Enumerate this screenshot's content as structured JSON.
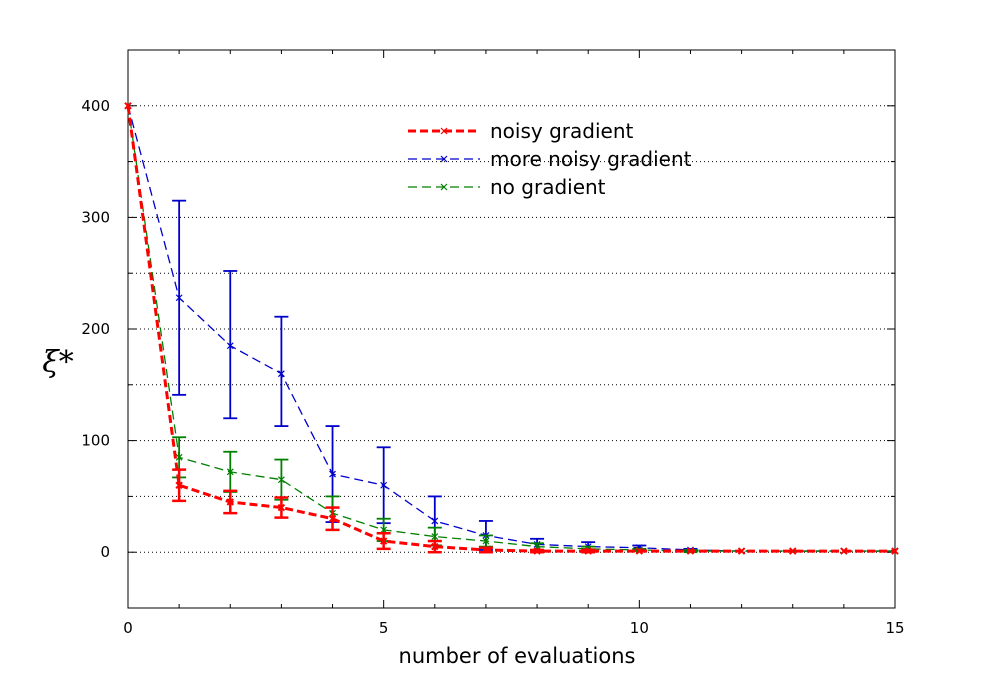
{
  "chart_data": {
    "type": "line",
    "title": "",
    "xlabel": "number of evaluations",
    "ylabel": "ξ*",
    "xlim": [
      0,
      15
    ],
    "ylim": [
      -50,
      450
    ],
    "xticks": [
      0,
      5,
      10,
      15
    ],
    "yticks": [
      0,
      100,
      200,
      300,
      400
    ],
    "grid": "horizontal-dotted",
    "legend_position": "top-center",
    "series": [
      {
        "name": "noisy gradient",
        "color": "#ff0000",
        "style": "bold-dashed",
        "x": [
          0,
          1,
          2,
          3,
          4,
          5,
          6,
          7,
          8,
          9,
          10,
          11,
          12,
          13,
          14,
          15
        ],
        "y": [
          400,
          60,
          45,
          40,
          30,
          10,
          5,
          2,
          1,
          1,
          1,
          1,
          1,
          1,
          1,
          1
        ],
        "err_low": [
          0,
          14,
          10,
          9,
          10,
          7,
          5,
          2,
          1,
          1,
          0,
          0,
          0,
          0,
          0,
          0
        ],
        "err_high": [
          0,
          14,
          10,
          9,
          10,
          7,
          5,
          2,
          1,
          1,
          0,
          0,
          0,
          0,
          0,
          0
        ]
      },
      {
        "name": "more noisy gradient",
        "color": "#0000cc",
        "style": "dashed",
        "x": [
          0,
          1,
          2,
          3,
          4,
          5,
          6,
          7,
          8,
          9,
          10,
          11,
          12,
          13,
          14,
          15
        ],
        "y": [
          400,
          228,
          185,
          160,
          70,
          60,
          28,
          15,
          7,
          5,
          4,
          2,
          1,
          1,
          1,
          1
        ],
        "err_low": [
          0,
          87,
          65,
          47,
          43,
          34,
          22,
          13,
          5,
          4,
          2,
          1,
          0,
          0,
          0,
          0
        ],
        "err_high": [
          0,
          87,
          67,
          51,
          43,
          34,
          22,
          13,
          5,
          4,
          2,
          1,
          0,
          0,
          0,
          0
        ]
      },
      {
        "name": "no gradient",
        "color": "#008000",
        "style": "dashed",
        "x": [
          0,
          1,
          2,
          3,
          4,
          5,
          6,
          7,
          8,
          9,
          10,
          11,
          12,
          13,
          14,
          15
        ],
        "y": [
          400,
          85,
          72,
          65,
          35,
          20,
          14,
          10,
          5,
          3,
          2,
          1,
          1,
          1,
          1,
          1
        ],
        "err_low": [
          0,
          18,
          18,
          18,
          15,
          10,
          8,
          5,
          3,
          2,
          1,
          1,
          0,
          0,
          0,
          0
        ],
        "err_high": [
          0,
          18,
          18,
          18,
          15,
          10,
          8,
          5,
          3,
          2,
          1,
          1,
          0,
          0,
          0,
          0
        ]
      }
    ]
  }
}
